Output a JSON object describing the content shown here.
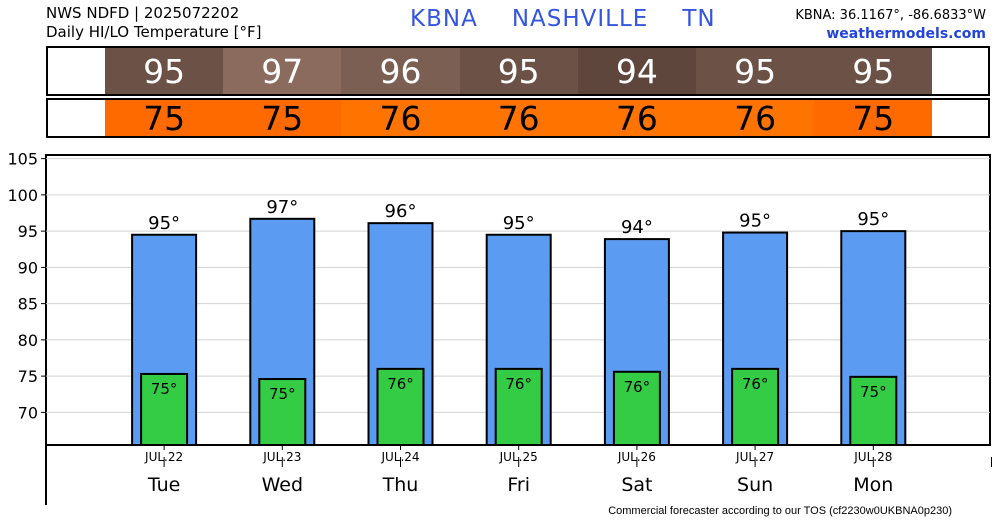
{
  "header": {
    "line1": "NWS NDFD | 2025072202",
    "line2": "Daily HI/LO Temperature [°F]",
    "station": "KBNA",
    "city": "NASHVILLE",
    "state": "TN",
    "coords": "KBNA: 36.1167°, -86.6833°W",
    "site": "weathermodels.com"
  },
  "hi_strip": {
    "values": [
      "95",
      "97",
      "96",
      "95",
      "94",
      "95",
      "95"
    ],
    "colors": [
      "#6b5146",
      "#8a6b5e",
      "#7c5f53",
      "#6b5146",
      "#5f463c",
      "#6b5146",
      "#6b5146"
    ]
  },
  "lo_strip": {
    "values": [
      "75",
      "75",
      "76",
      "76",
      "76",
      "76",
      "75"
    ],
    "colors": [
      "#ff6a00",
      "#ff6a00",
      "#ff7400",
      "#ff7400",
      "#ff7400",
      "#ff7400",
      "#ff6a00"
    ]
  },
  "chart_data": {
    "type": "bar",
    "categories": [
      "Tue",
      "Wed",
      "Thu",
      "Fri",
      "Sat",
      "Sun",
      "Mon"
    ],
    "dates": [
      "JUL.22",
      "JUL.23",
      "JUL.24",
      "JUL.25",
      "JUL.26",
      "JUL.27",
      "JUL.28"
    ],
    "series": [
      {
        "values": [
          94.5,
          96.7,
          96.1,
          94.5,
          93.9,
          94.8,
          95.0
        ],
        "color": "#5b9cf2"
      },
      {
        "values": [
          75.3,
          74.6,
          76.0,
          76.0,
          75.6,
          76.0,
          74.9
        ],
        "color": "#33cc44"
      }
    ],
    "hi_labels": [
      "95°",
      "97°",
      "96°",
      "95°",
      "94°",
      "95°",
      "95°"
    ],
    "lo_labels": [
      "75°",
      "75°",
      "76°",
      "76°",
      "76°",
      "76°",
      "75°"
    ],
    "yticks": [
      70,
      75,
      80,
      85,
      90,
      95,
      100,
      105
    ],
    "ylim": [
      65.5,
      105.5
    ],
    "grid": true
  },
  "footer": "Commercial forecaster according to our TOS (cf2230w0UKBNA0p230)"
}
